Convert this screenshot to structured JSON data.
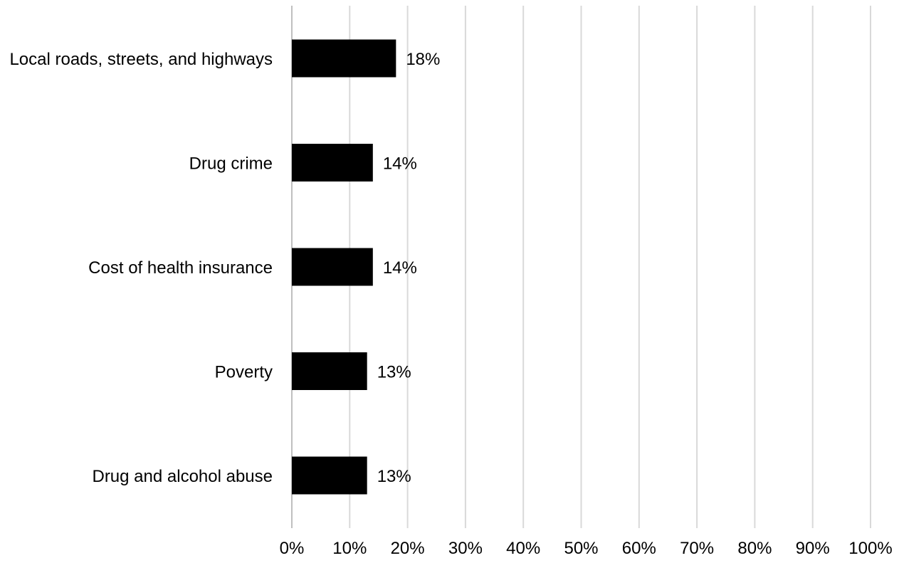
{
  "chart_data": {
    "type": "bar",
    "orientation": "horizontal",
    "categories": [
      "Local roads, streets, and highways",
      "Drug crime",
      "Cost of health insurance",
      "Poverty",
      "Drug and alcohol abuse"
    ],
    "values": [
      18,
      14,
      14,
      13,
      13
    ],
    "value_labels": [
      "18%",
      "14%",
      "14%",
      "13%",
      "13%"
    ],
    "xlim": [
      0,
      100
    ],
    "x_ticks": [
      0,
      10,
      20,
      30,
      40,
      50,
      60,
      70,
      80,
      90,
      100
    ],
    "x_tick_labels": [
      "0%",
      "10%",
      "20%",
      "30%",
      "40%",
      "50%",
      "60%",
      "70%",
      "80%",
      "90%",
      "100%"
    ],
    "grid": true,
    "legend": "none",
    "bar_color": "#000000",
    "grid_color": "#d9d9d9"
  }
}
